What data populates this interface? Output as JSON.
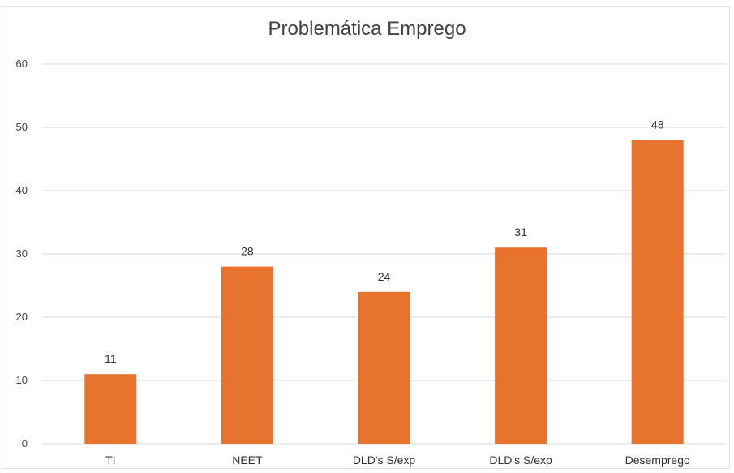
{
  "chart_data": {
    "type": "bar",
    "title": "Problemática Emprego",
    "categories": [
      "TI",
      "NEET",
      "DLD's S/exp",
      "DLD's S/exp",
      "Desemprego"
    ],
    "values": [
      11,
      28,
      24,
      31,
      48
    ],
    "ylim": [
      0,
      60
    ],
    "yticks": [
      0,
      10,
      20,
      30,
      40,
      50,
      60
    ],
    "grid": true,
    "data_labels": true,
    "bar_color": "#E8732F",
    "grid_color": "#d9d9d9"
  }
}
